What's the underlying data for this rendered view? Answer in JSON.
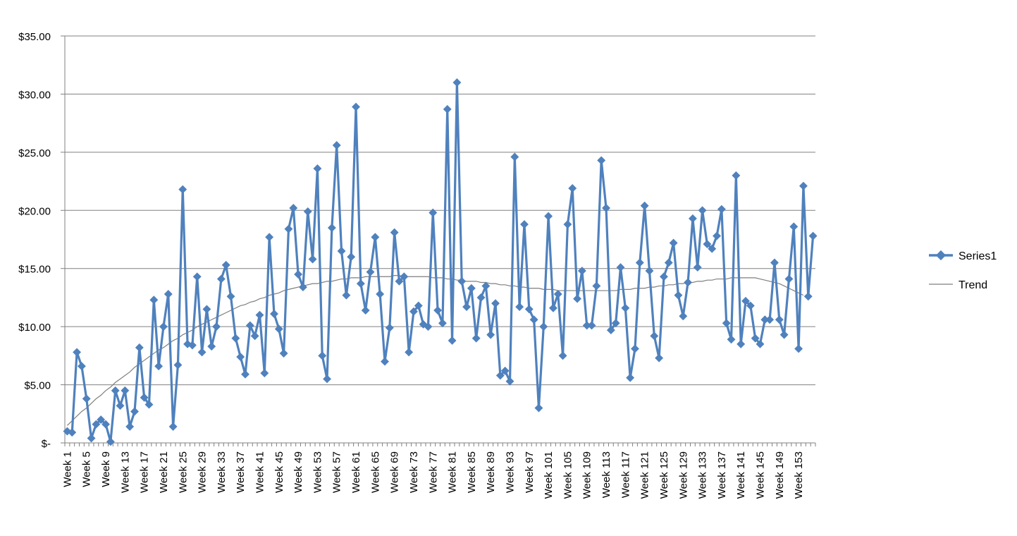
{
  "chart_data": {
    "type": "line",
    "title": "",
    "xlabel": "",
    "ylabel": "",
    "ylim": [
      0,
      35
    ],
    "y_ticks": [
      0,
      5,
      10,
      15,
      20,
      25,
      30,
      35
    ],
    "y_tick_labels": [
      "$-",
      "$5.00",
      "$10.00",
      "$15.00",
      "$20.00",
      "$25.00",
      "$30.00",
      "$35.00"
    ],
    "grid": "horizontal",
    "legend_position": "right",
    "x_tick_labels": [
      "Week 1",
      "Week 5",
      "Week 9",
      "Week 13",
      "Week 17",
      "Week 21",
      "Week 25",
      "Week 29",
      "Week 33",
      "Week 37",
      "Week 41",
      "Week 45",
      "Week 49",
      "Week 53",
      "Week 57",
      "Week 61",
      "Week 65",
      "Week 69",
      "Week 73",
      "Week 77",
      "Week 81",
      "Week 85",
      "Week 89",
      "Week 93",
      "Week 97",
      "Week 101",
      "Week 105",
      "Week 109",
      "Week 113",
      "Week 117",
      "Week 121",
      "Week 125",
      "Week 129",
      "Week 133",
      "Week 137",
      "Week 141",
      "Week 145",
      "Week 149",
      "Week 153"
    ],
    "colors": {
      "series": "#4f81bd",
      "trend": "#7f7f7f",
      "grid": "#808080"
    },
    "series": [
      {
        "name": "Series1",
        "values": [
          1.0,
          0.9,
          7.8,
          6.6,
          3.8,
          0.4,
          1.6,
          2.0,
          1.6,
          0.1,
          4.5,
          3.2,
          4.5,
          1.4,
          2.7,
          8.2,
          3.9,
          3.3,
          12.3,
          6.6,
          10.0,
          12.8,
          1.4,
          6.7,
          21.8,
          8.5,
          8.4,
          14.3,
          7.8,
          11.5,
          8.3,
          10.0,
          14.1,
          15.3,
          12.6,
          9.0,
          7.4,
          5.9,
          10.1,
          9.2,
          11.0,
          6.0,
          17.7,
          11.1,
          9.8,
          7.7,
          18.4,
          20.2,
          14.5,
          13.4,
          19.9,
          15.8,
          23.6,
          7.5,
          5.5,
          18.5,
          25.6,
          16.5,
          12.7,
          16.0,
          28.9,
          13.7,
          11.4,
          14.7,
          17.7,
          12.8,
          7.0,
          9.9,
          18.1,
          13.9,
          14.3,
          7.8,
          11.3,
          11.8,
          10.2,
          10.0,
          19.8,
          11.4,
          10.3,
          28.7,
          8.8,
          31.0,
          13.9,
          11.7,
          13.3,
          9.0,
          12.5,
          13.5,
          9.3,
          12.0,
          5.8,
          6.2,
          5.3,
          24.6,
          11.7,
          18.8,
          11.5,
          10.6,
          3.0,
          10.0,
          19.5,
          11.6,
          12.8,
          7.5,
          18.8,
          21.9,
          12.4,
          14.8,
          10.1,
          10.1,
          13.5,
          24.3,
          20.2,
          9.7,
          10.3,
          15.1,
          11.6,
          5.6,
          8.1,
          15.5,
          20.4,
          14.8,
          9.2,
          7.3,
          14.3,
          15.5,
          17.2,
          12.7,
          10.9,
          13.8,
          19.3,
          15.1,
          20.0,
          17.1,
          16.7,
          17.8,
          20.1,
          10.3,
          8.9,
          23.0,
          8.5,
          12.2,
          11.8,
          9.0,
          8.5,
          10.6,
          10.6,
          15.5,
          10.6,
          9.3,
          14.1,
          18.6,
          8.1,
          22.1,
          12.6,
          17.8
        ]
      },
      {
        "name": "Trend",
        "values": [
          1.5,
          1.9,
          2.3,
          2.7,
          3.0,
          3.4,
          3.8,
          4.1,
          4.5,
          4.8,
          5.2,
          5.5,
          5.8,
          6.1,
          6.5,
          6.8,
          7.1,
          7.4,
          7.7,
          8.0,
          8.2,
          8.5,
          8.8,
          9.0,
          9.3,
          9.5,
          9.7,
          10.0,
          10.2,
          10.4,
          10.6,
          10.8,
          11.0,
          11.2,
          11.4,
          11.6,
          11.8,
          11.9,
          12.1,
          12.2,
          12.4,
          12.5,
          12.7,
          12.8,
          12.9,
          13.1,
          13.2,
          13.3,
          13.4,
          13.5,
          13.6,
          13.7,
          13.7,
          13.8,
          13.9,
          13.9,
          14.0,
          14.1,
          14.1,
          14.2,
          14.2,
          14.2,
          14.3,
          14.3,
          14.3,
          14.3,
          14.3,
          14.3,
          14.4,
          14.4,
          14.3,
          14.3,
          14.3,
          14.3,
          14.3,
          14.3,
          14.2,
          14.2,
          14.2,
          14.1,
          14.1,
          14.0,
          14.0,
          13.9,
          13.9,
          13.9,
          13.8,
          13.8,
          13.7,
          13.7,
          13.6,
          13.6,
          13.5,
          13.5,
          13.4,
          13.4,
          13.3,
          13.3,
          13.3,
          13.2,
          13.2,
          13.2,
          13.1,
          13.1,
          13.1,
          13.1,
          13.1,
          13.1,
          13.1,
          13.1,
          13.1,
          13.1,
          13.1,
          13.1,
          13.1,
          13.2,
          13.2,
          13.2,
          13.3,
          13.3,
          13.3,
          13.4,
          13.4,
          13.5,
          13.5,
          13.6,
          13.6,
          13.7,
          13.7,
          13.8,
          13.8,
          13.9,
          13.9,
          14.0,
          14.0,
          14.1,
          14.1,
          14.1,
          14.2,
          14.2,
          14.2,
          14.2,
          14.2,
          14.2,
          14.1,
          14.0,
          13.9,
          13.8,
          13.7,
          13.5,
          13.3,
          13.1,
          12.9,
          12.7
        ]
      }
    ]
  }
}
